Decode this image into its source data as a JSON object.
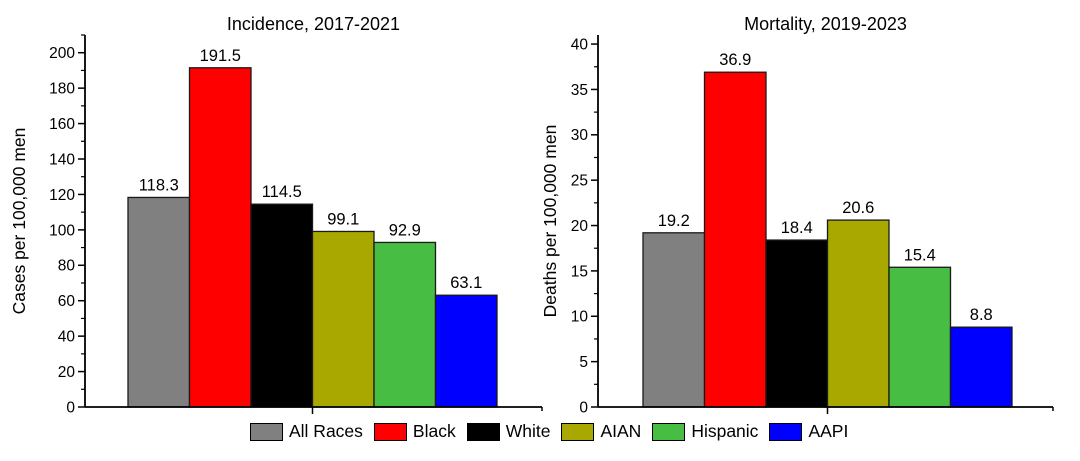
{
  "figure": {
    "background": "#ffffff",
    "text_color": "#000000",
    "axis_color": "#000000"
  },
  "chart_data": [
    {
      "type": "bar",
      "title": "Incidence, 2017-2021",
      "xlabel": "",
      "ylabel": "Cases per 100,000 men",
      "categories": [
        "All Races",
        "Black",
        "White",
        "AIAN",
        "Hispanic",
        "AAPI"
      ],
      "values": [
        118.3,
        191.5,
        114.5,
        99.1,
        92.9,
        63.1
      ],
      "bar_value_labels": [
        "118.3",
        "191.5",
        "114.5",
        "99.1",
        "92.9",
        "63.1"
      ],
      "ylim": [
        0,
        210
      ],
      "ytick_step": 20,
      "ytick_label_max": 200,
      "minor_tick_step": 10,
      "grid": false,
      "legend_position": "shared-bottom"
    },
    {
      "type": "bar",
      "title": "Mortality, 2019-2023",
      "xlabel": "",
      "ylabel": "Deaths per 100,000 men",
      "categories": [
        "All Races",
        "Black",
        "White",
        "AIAN",
        "Hispanic",
        "AAPI"
      ],
      "values": [
        19.2,
        36.9,
        18.4,
        20.6,
        15.4,
        8.8
      ],
      "bar_value_labels": [
        "19.2",
        "36.9",
        "18.4",
        "20.6",
        "15.4",
        "8.8"
      ],
      "ylim": [
        0,
        41
      ],
      "ytick_step": 5,
      "ytick_label_max": 40,
      "minor_tick_step": 2.5,
      "grid": false,
      "legend_position": "shared-bottom"
    }
  ],
  "legend": {
    "position": "bottom-center",
    "entries": [
      {
        "label": "All Races",
        "color": "#808080"
      },
      {
        "label": "Black",
        "color": "#FF0000"
      },
      {
        "label": "White",
        "color": "#000000"
      },
      {
        "label": "AIAN",
        "color": "#A8A800"
      },
      {
        "label": "Hispanic",
        "color": "#47BD43"
      },
      {
        "label": "AAPI",
        "color": "#0000FF"
      }
    ]
  }
}
